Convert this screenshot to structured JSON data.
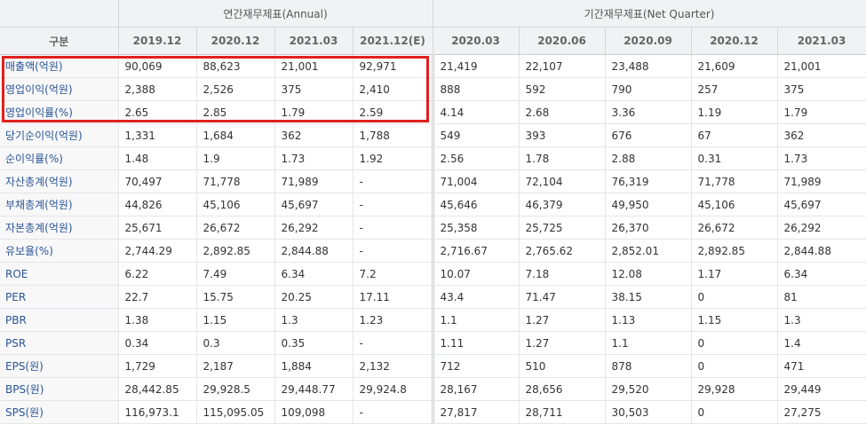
{
  "header": {
    "category_label": "구분",
    "annual_group": "연간재무제표(Annual)",
    "quarter_group": "기간재무제표(Net Quarter)",
    "annual_periods": [
      "2019.12",
      "2020.12",
      "2021.03",
      "2021.12(E)"
    ],
    "quarter_periods": [
      "2020.03",
      "2020.06",
      "2020.09",
      "2020.12",
      "2021.03"
    ]
  },
  "rows": [
    {
      "label": "매출액(억원)",
      "annual": [
        "90,069",
        "88,623",
        "21,001",
        "92,971"
      ],
      "quarter": [
        "21,419",
        "22,107",
        "23,488",
        "21,609",
        "21,001"
      ]
    },
    {
      "label": "영업이익(억원)",
      "annual": [
        "2,388",
        "2,526",
        "375",
        "2,410"
      ],
      "quarter": [
        "888",
        "592",
        "790",
        "257",
        "375"
      ]
    },
    {
      "label": "영업이익률(%)",
      "annual": [
        "2.65",
        "2.85",
        "1.79",
        "2.59"
      ],
      "quarter": [
        "4.14",
        "2.68",
        "3.36",
        "1.19",
        "1.79"
      ]
    },
    {
      "label": "당기순이익(억원)",
      "annual": [
        "1,331",
        "1,684",
        "362",
        "1,788"
      ],
      "quarter": [
        "549",
        "393",
        "676",
        "67",
        "362"
      ]
    },
    {
      "label": "순이익률(%)",
      "annual": [
        "1.48",
        "1.9",
        "1.73",
        "1.92"
      ],
      "quarter": [
        "2.56",
        "1.78",
        "2.88",
        "0.31",
        "1.73"
      ]
    },
    {
      "label": "자산총계(억원)",
      "annual": [
        "70,497",
        "71,778",
        "71,989",
        "-"
      ],
      "quarter": [
        "71,004",
        "72,104",
        "76,319",
        "71,778",
        "71,989"
      ]
    },
    {
      "label": "부채총계(억원)",
      "annual": [
        "44,826",
        "45,106",
        "45,697",
        "-"
      ],
      "quarter": [
        "45,646",
        "46,379",
        "49,950",
        "45,106",
        "45,697"
      ]
    },
    {
      "label": "자본총계(억원)",
      "annual": [
        "25,671",
        "26,672",
        "26,292",
        "-"
      ],
      "quarter": [
        "25,358",
        "25,725",
        "26,370",
        "26,672",
        "26,292"
      ]
    },
    {
      "label": "유보율(%)",
      "annual": [
        "2,744.29",
        "2,892.85",
        "2,844.88",
        "-"
      ],
      "quarter": [
        "2,716.67",
        "2,765.62",
        "2,852.01",
        "2,892.85",
        "2,844.88"
      ]
    },
    {
      "label": "ROE",
      "annual": [
        "6.22",
        "7.49",
        "6.34",
        "7.2"
      ],
      "quarter": [
        "10.07",
        "7.18",
        "12.08",
        "1.17",
        "6.34"
      ]
    },
    {
      "label": "PER",
      "annual": [
        "22.7",
        "15.75",
        "20.25",
        "17.11"
      ],
      "quarter": [
        "43.4",
        "71.47",
        "38.15",
        "0",
        "81"
      ]
    },
    {
      "label": "PBR",
      "annual": [
        "1.38",
        "1.15",
        "1.3",
        "1.23"
      ],
      "quarter": [
        "1.1",
        "1.27",
        "1.13",
        "1.15",
        "1.3"
      ]
    },
    {
      "label": "PSR",
      "annual": [
        "0.34",
        "0.3",
        "0.35",
        "-"
      ],
      "quarter": [
        "1.11",
        "1.27",
        "1.1",
        "0",
        "1.4"
      ]
    },
    {
      "label": "EPS(원)",
      "annual": [
        "1,729",
        "2,187",
        "1,884",
        "2,132"
      ],
      "quarter": [
        "712",
        "510",
        "878",
        "0",
        "471"
      ]
    },
    {
      "label": "BPS(원)",
      "annual": [
        "28,442.85",
        "29,928.5",
        "29,448.77",
        "29,924.8"
      ],
      "quarter": [
        "28,167",
        "28,656",
        "29,520",
        "29,928",
        "29,449"
      ]
    },
    {
      "label": "SPS(원)",
      "annual": [
        "116,973.1",
        "115,095.05",
        "109,098",
        "-"
      ],
      "quarter": [
        "27,817",
        "28,711",
        "30,503",
        "0",
        "27,275"
      ]
    }
  ],
  "colors": {
    "highlight": "#e0201d",
    "label_text": "#2a5596",
    "header_bg": "#f1f2f4"
  }
}
